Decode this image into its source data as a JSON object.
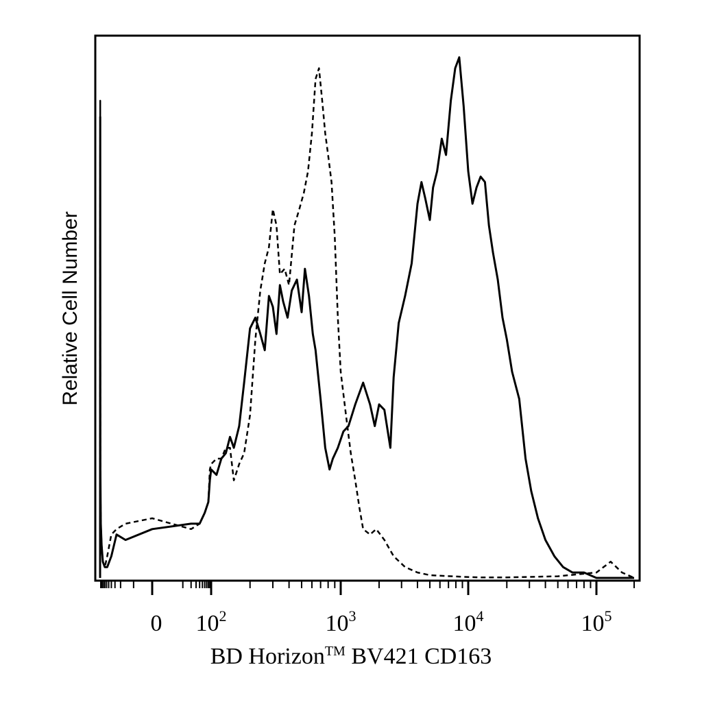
{
  "chart_data": {
    "type": "line",
    "xlabel": "BD Horizon™ BV421 CD163",
    "xlabel_main": "BD Horizon",
    "xlabel_tm": "TM",
    "xlabel_rest": " BV421 CD163",
    "ylabel": "Relative Cell Number",
    "x_scale": "biexponential (logicle)",
    "xlim": [
      -150,
      200000
    ],
    "ylim": [
      0,
      100
    ],
    "x_tick_labels": [
      {
        "base": "0",
        "exp": ""
      },
      {
        "base": "10",
        "exp": "2"
      },
      {
        "base": "10",
        "exp": "3"
      },
      {
        "base": "10",
        "exp": "4"
      },
      {
        "base": "10",
        "exp": "5"
      }
    ],
    "series": [
      {
        "style": "solid",
        "x": [
          -150,
          -149,
          -148,
          -147,
          -146,
          -140,
          -130,
          -115,
          -95,
          -75,
          -50,
          -30,
          -12,
          0,
          20,
          40,
          60,
          80,
          90,
          100,
          110,
          120,
          130,
          140,
          150,
          165,
          180,
          200,
          220,
          240,
          260,
          280,
          300,
          320,
          340,
          360,
          390,
          420,
          460,
          500,
          530,
          570,
          610,
          640,
          700,
          760,
          820,
          870,
          950,
          1050,
          1150,
          1300,
          1500,
          1700,
          1850,
          2000,
          2200,
          2450,
          2600,
          2850,
          3200,
          3600,
          4000,
          4300,
          4600,
          5000,
          5300,
          5700,
          6200,
          6700,
          7300,
          7900,
          8500,
          9200,
          10000,
          10800,
          11600,
          12500,
          13500,
          14500,
          15600,
          17000,
          18500,
          20000,
          22000,
          25000,
          28000,
          31000,
          35000,
          40000,
          47000,
          55000,
          65000,
          80000,
          100000,
          120000,
          135000,
          150000,
          170000,
          200000
        ],
        "y": [
          0,
          70,
          85,
          40,
          20,
          10,
          6,
          3,
          2,
          2,
          4,
          8,
          7,
          9,
          10,
          10,
          12,
          14,
          18,
          20,
          19,
          22,
          23,
          26,
          24,
          28,
          36,
          46,
          48,
          45,
          42,
          52,
          50,
          45,
          54,
          51,
          48,
          53,
          55,
          49,
          57,
          52,
          45,
          42,
          33,
          24,
          20,
          22,
          24,
          27,
          28,
          32,
          36,
          32,
          28,
          32,
          31,
          24,
          37,
          47,
          52,
          58,
          69,
          73,
          70,
          66,
          72,
          75,
          81,
          78,
          88,
          94,
          96,
          87,
          75,
          69,
          72,
          74,
          73,
          65,
          60,
          55,
          48,
          44,
          38,
          33,
          22,
          16,
          11,
          7,
          4,
          2,
          1,
          1,
          0,
          0,
          0,
          0,
          0,
          0
        ]
      },
      {
        "style": "dashed",
        "x": [
          -150,
          -149,
          -148,
          -147,
          -146,
          -140,
          -130,
          -115,
          -95,
          -75,
          -50,
          -30,
          -12,
          0,
          20,
          40,
          60,
          80,
          90,
          100,
          110,
          120,
          130,
          140,
          150,
          165,
          180,
          200,
          220,
          240,
          260,
          280,
          300,
          320,
          340,
          370,
          400,
          440,
          480,
          520,
          560,
          600,
          640,
          680,
          720,
          760,
          800,
          850,
          900,
          950,
          1000,
          1100,
          1200,
          1300,
          1400,
          1500,
          1700,
          1900,
          2200,
          2600,
          3200,
          4000,
          5000,
          6000,
          7500,
          9000,
          12000,
          20000,
          50000,
          100000,
          130000,
          160000,
          200000
        ],
        "y": [
          0,
          50,
          88,
          40,
          20,
          10,
          6,
          3,
          2,
          4,
          8,
          9,
          10,
          11,
          9,
          10,
          12,
          14,
          20,
          21,
          22,
          22,
          24,
          24,
          18,
          21,
          23,
          30,
          44,
          53,
          58,
          61,
          68,
          65,
          56,
          57,
          54,
          65,
          68,
          71,
          75,
          82,
          92,
          94,
          88,
          82,
          78,
          73,
          63,
          48,
          38,
          30,
          23,
          18,
          13,
          9,
          8,
          9,
          7,
          4,
          2,
          1,
          0.5,
          0.4,
          0.3,
          0.2,
          0.1,
          0.1,
          0.3,
          1,
          3,
          1,
          0
        ]
      }
    ]
  }
}
